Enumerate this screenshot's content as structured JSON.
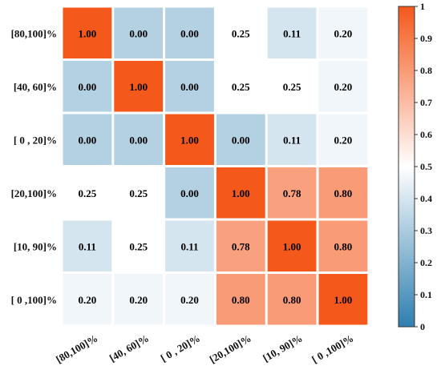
{
  "chart_data": {
    "type": "heatmap",
    "title": "",
    "xlabel": "",
    "ylabel": "",
    "row_labels": [
      "[80,100]%",
      "[40,  60]%",
      "[ 0 ,  20]%",
      "[20,100]%",
      "[10,  90]%",
      "[ 0 ,100]%"
    ],
    "col_labels": [
      "[80,100]%",
      "[40,  60]%",
      "[ 0 ,  20]%",
      "[20,100]%",
      "[10,  90]%",
      "[ 0 ,100]%"
    ],
    "values": [
      [
        1.0,
        0.0,
        0.0,
        0.25,
        0.11,
        0.2
      ],
      [
        0.0,
        1.0,
        0.0,
        0.25,
        0.25,
        0.2
      ],
      [
        0.0,
        0.0,
        1.0,
        0.0,
        0.11,
        0.2
      ],
      [
        0.25,
        0.25,
        0.0,
        1.0,
        0.78,
        0.8
      ],
      [
        0.11,
        0.25,
        0.11,
        0.78,
        1.0,
        0.8
      ],
      [
        0.2,
        0.2,
        0.2,
        0.8,
        0.8,
        1.0
      ]
    ],
    "value_labels": [
      [
        "1.00",
        "0.00",
        "0.00",
        "0.25",
        "0.11",
        "0.20"
      ],
      [
        "0.00",
        "1.00",
        "0.00",
        "0.25",
        "0.25",
        "0.20"
      ],
      [
        "0.00",
        "0.00",
        "1.00",
        "0.00",
        "0.11",
        "0.20"
      ],
      [
        "0.25",
        "0.25",
        "0.00",
        "1.00",
        "0.78",
        "0.80"
      ],
      [
        "0.11",
        "0.25",
        "0.11",
        "0.78",
        "1.00",
        "0.80"
      ],
      [
        "0.20",
        "0.20",
        "0.20",
        "0.80",
        "0.80",
        "1.00"
      ]
    ],
    "colorbar": {
      "range": [
        0,
        1
      ],
      "ticks": [
        "0",
        "0.1",
        "0.2",
        "0.3",
        "0.4",
        "0.5",
        "0.6",
        "0.7",
        "0.8",
        "0.9",
        "1"
      ],
      "colors": [
        "#2e7fb0",
        "#ffffff",
        "#f4581b"
      ]
    },
    "grid": false
  }
}
